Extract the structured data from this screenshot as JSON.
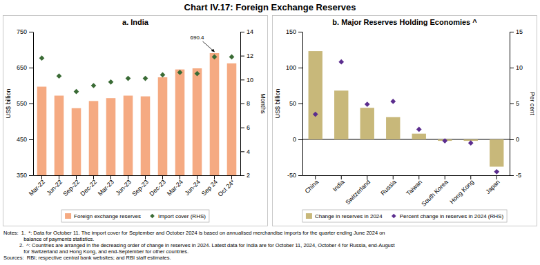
{
  "title": "Chart IV.17: Foreign Exchange Reserves",
  "notes": [
    "Notes:  1.  *: Data for October 11. The import cover for September and October 2024 is based on annualised merchandise imports for the quarter ending June 2024 on",
    "              balance of payments statistics.",
    "           2.  ^: Countries are arranged in the decreasing order of change in reserves in 2024. Latest data for India are for October 11, 2024, October 4 for Russia, end-August",
    "              for Switzerland and Hong Kong, and end-September for other countries.",
    "Sources:  RBI; respective central bank websites; and RBI staff estimates."
  ],
  "chart_data": [
    {
      "type": "bar",
      "title": "a. India",
      "categories": [
        "Mar-22",
        "Jun-22",
        "Sep-22",
        "Dec-22",
        "Mar-23",
        "Jun-23",
        "Sep-23",
        "Dec-23",
        "Mar-24",
        "Jun-24",
        "Sep 24",
        "Oct 24*"
      ],
      "series": [
        {
          "name": "Foreign exchange reserves",
          "type": "bar",
          "color": "#F5AA82",
          "values": [
            597,
            572,
            537,
            557,
            565,
            572,
            570,
            623,
            645,
            648,
            690.4,
            662
          ]
        },
        {
          "name": "Import cover (RHS)",
          "type": "scatter",
          "marker": "diamond",
          "color": "#3A6B35",
          "axis": "y2",
          "values": [
            11.8,
            10.3,
            9.0,
            9.5,
            9.8,
            10.1,
            10.1,
            10.4,
            10.6,
            10.5,
            11.9,
            11.9
          ]
        }
      ],
      "ylabel": "US$ billion",
      "y2label": "Months",
      "ylim": [
        350,
        750
      ],
      "yticks": [
        350,
        450,
        550,
        650,
        750
      ],
      "y2lim": [
        2,
        14
      ],
      "y2ticks": [
        2,
        4,
        6,
        8,
        10,
        12,
        14
      ],
      "annotations": [
        {
          "text": "690.4",
          "x": "Sep 24",
          "y": 690.4
        }
      ],
      "legend": "bottom"
    },
    {
      "type": "bar",
      "title": "b. Major Reserves Holding Economies ^",
      "categories": [
        "China",
        "India",
        "Switzerland",
        "Russia",
        "Taiwan",
        "South Korea",
        "Hong Kong",
        "Japan"
      ],
      "series": [
        {
          "name": "Change in reserves in 2024",
          "type": "bar",
          "color": "#C8B87A",
          "values": [
            123,
            68,
            44,
            31,
            8,
            -2,
            -2,
            -38
          ]
        },
        {
          "name": "Percent change in reserves in 2024 (RHS)",
          "type": "scatter",
          "marker": "diamond",
          "color": "#5B2D8E",
          "axis": "y2",
          "values": [
            3.5,
            10.8,
            4.9,
            5.3,
            1.4,
            -0.2,
            -0.5,
            -4.5
          ]
        }
      ],
      "ylabel": "US$ billion",
      "y2label": "Per cent",
      "ylim": [
        -50,
        150
      ],
      "yticks": [
        -50,
        0,
        50,
        100,
        150
      ],
      "y2lim": [
        -5,
        15
      ],
      "y2ticks": [
        -5,
        0,
        5,
        10,
        15
      ],
      "legend": "bottom"
    }
  ]
}
